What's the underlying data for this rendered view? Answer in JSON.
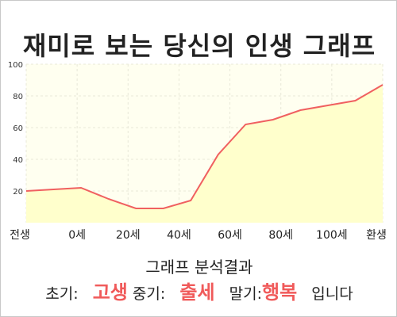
{
  "title": "재미로 보는 당신의 인생 그래프",
  "chart_data": {
    "type": "area",
    "x_labels": [
      "전생",
      "0세",
      "20세",
      "40세",
      "60세",
      "80세",
      "100세",
      "환생"
    ],
    "ylim": [
      0,
      100
    ],
    "y_ticks": [
      20,
      40,
      60,
      80,
      100
    ],
    "grid": true,
    "x": [
      0,
      1,
      2,
      3,
      4,
      5,
      6,
      7,
      8,
      9,
      10,
      11,
      12,
      13
    ],
    "values": [
      20,
      21,
      22,
      15,
      9,
      9,
      14,
      43,
      62,
      65,
      71,
      74,
      77,
      87
    ],
    "colors": {
      "line": "#f06060",
      "fill": "#ffffcc",
      "plot_bg": "#fffff0",
      "grid": "#e8e8d8"
    }
  },
  "result": {
    "heading": "그래프 분석결과",
    "early_label": "초기:",
    "early_value": "고생",
    "mid_label": "중기:",
    "mid_value": "출세",
    "late_label": "말기:",
    "late_value": "행복",
    "suffix": "입니다"
  }
}
